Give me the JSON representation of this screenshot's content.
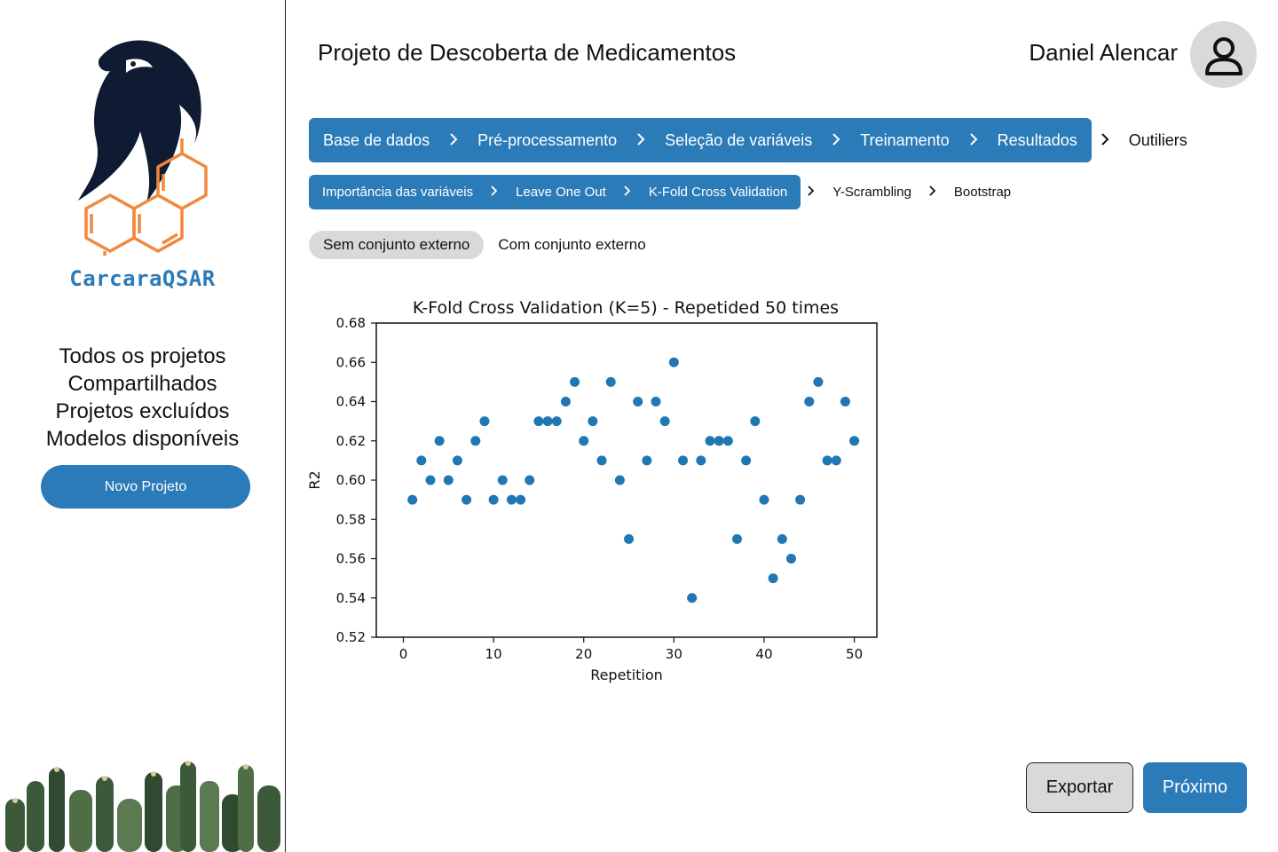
{
  "sidebar": {
    "brand": "CarcaraQSAR",
    "nav": [
      "Todos os projetos",
      "Compartilhados",
      "Projetos excluídos",
      "Modelos disponíveis"
    ],
    "new_project": "Novo Projeto"
  },
  "header": {
    "title": "Projeto de Descoberta de Medicamentos",
    "user": "Daniel Alencar"
  },
  "steps": [
    {
      "label": "Base de dados",
      "active": true
    },
    {
      "label": "Pré-processamento",
      "active": true
    },
    {
      "label": "Seleção de variáveis",
      "active": true
    },
    {
      "label": "Treinamento",
      "active": true
    },
    {
      "label": "Resultados",
      "active": true
    },
    {
      "label": "Outiliers",
      "active": false
    }
  ],
  "substeps": [
    {
      "label": "Importância das variáveis",
      "active": true
    },
    {
      "label": "Leave One Out",
      "active": true
    },
    {
      "label": "K-Fold Cross Validation",
      "active": true
    },
    {
      "label": "Y-Scrambling",
      "active": false
    },
    {
      "label": "Bootstrap",
      "active": false
    }
  ],
  "toggle": {
    "options": [
      "Sem conjunto externo",
      "Com conjunto externo"
    ],
    "selected": 0
  },
  "actions": {
    "export": "Exportar",
    "next": "Próximo"
  },
  "colors": {
    "accent": "#2b7bb9",
    "logo_orange": "#f0883e",
    "logo_navy": "#0f1b33",
    "point": "#1f77b4"
  },
  "chart_data": {
    "type": "scatter",
    "title": "K-Fold Cross Validation (K=5) - Repetided 50 times",
    "xlabel": "Repetition",
    "ylabel": "R2",
    "xlim": [
      -3,
      52.5
    ],
    "ylim": [
      0.52,
      0.68
    ],
    "xticks": [
      0,
      10,
      20,
      30,
      40,
      50
    ],
    "yticks": [
      0.52,
      0.54,
      0.56,
      0.58,
      0.6,
      0.62,
      0.64,
      0.66,
      0.68
    ],
    "ytick_labels": [
      "0.52",
      "0.54",
      "0.56",
      "0.58",
      "0.60",
      "0.62",
      "0.64",
      "0.66",
      "0.68"
    ],
    "x": [
      1,
      2,
      3,
      4,
      5,
      6,
      7,
      8,
      9,
      10,
      11,
      12,
      13,
      14,
      15,
      16,
      17,
      18,
      19,
      20,
      21,
      22,
      23,
      24,
      25,
      26,
      27,
      28,
      29,
      30,
      31,
      32,
      33,
      34,
      35,
      36,
      37,
      38,
      39,
      40,
      41,
      42,
      43,
      44,
      45,
      46,
      47,
      48,
      49,
      50
    ],
    "y": [
      0.59,
      0.61,
      0.6,
      0.62,
      0.6,
      0.61,
      0.59,
      0.62,
      0.63,
      0.59,
      0.6,
      0.59,
      0.59,
      0.6,
      0.63,
      0.63,
      0.63,
      0.64,
      0.65,
      0.62,
      0.63,
      0.61,
      0.65,
      0.6,
      0.57,
      0.64,
      0.61,
      0.64,
      0.63,
      0.66,
      0.61,
      0.54,
      0.61,
      0.62,
      0.62,
      0.62,
      0.57,
      0.61,
      0.63,
      0.59,
      0.55,
      0.57,
      0.56,
      0.59,
      0.64,
      0.65,
      0.61,
      0.61,
      0.64,
      0.62
    ],
    "grid": false,
    "legend": "none"
  }
}
